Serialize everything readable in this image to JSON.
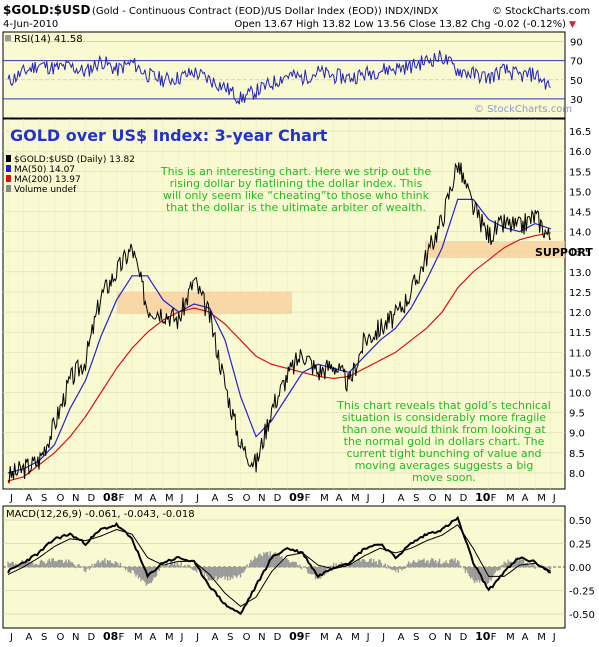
{
  "header": {
    "symbol": "$GOLD:$USD",
    "description": "(Gold - Continuous Contract (EOD)/US Dollar Index (EOD))  INDX/INDX",
    "brand": "© StockCharts.com",
    "date": "4-Jun-2010",
    "ohlc": "Open 13.67  High 13.82  Low 13.56  Close 13.82  Chg -0.02 (-0.12%)",
    "chg_marker": "▼"
  },
  "rsi_panel": {
    "legend": "RSI(14) 41.58",
    "ticks": [
      "90",
      "70",
      "50",
      "30"
    ],
    "watermark": "© StockCharts.com"
  },
  "main_panel": {
    "headline": "GOLD over US$ Index: 3-year Chart",
    "legend": [
      {
        "text": "$GOLD:$USD (Daily) 13.82",
        "color": "#000000"
      },
      {
        "text": "MA(50) 14.07",
        "color": "#2222cc"
      },
      {
        "text": "MA(200) 13.97",
        "color": "#dd1111"
      },
      {
        "text": "Volume undef",
        "color": "#888888"
      }
    ],
    "note_top": [
      "This is an interesting chart. Here we strip out the",
      "rising dollar by flatlining the dollar index. This",
      "will only seem like “cheating”to those who think",
      "that the dollar is the ultimate arbiter of wealth."
    ],
    "note_bottom": [
      "This chart reveals that gold’s technical",
      "situation is considerably more fragile",
      "than one would think from looking at",
      "the normal gold in dollars chart. The",
      "current tight bunching of value and",
      "moving averages suggests a big",
      "move soon."
    ],
    "support_label": "SUPPORT",
    "yticks": [
      "16.5",
      "16.0",
      "15.5",
      "15.0",
      "14.5",
      "14.0",
      "13.5",
      "13.0",
      "12.5",
      "12.0",
      "11.5",
      "11.0",
      "10.5",
      "10.0",
      "9.5",
      "9.0",
      "8.5",
      "8.0"
    ]
  },
  "macd_panel": {
    "legend": "MACD(12,26,9) -0.061, -0.043, -0.018",
    "ticks": [
      "0.50",
      "0.25",
      "0.00",
      "-0.25",
      "-0.50"
    ]
  },
  "x_axis": {
    "labels": [
      "J",
      "A",
      "S",
      "O",
      "N",
      "D",
      "08",
      "F",
      "M",
      "A",
      "M",
      "J",
      "J",
      "A",
      "S",
      "O",
      "N",
      "D",
      "09",
      "F",
      "M",
      "A",
      "M",
      "J",
      "J",
      "A",
      "S",
      "O",
      "N",
      "D",
      "10",
      "F",
      "M",
      "A",
      "M",
      "J"
    ]
  },
  "colors": {
    "panel_bg": "#fafad2",
    "rsi_line": "#2222bb",
    "ma50": "#2222cc",
    "ma200": "#dd1111",
    "note_text": "#22bb22",
    "headline": "#2233cc",
    "support_zone": "#f8cc99"
  },
  "chart_data": [
    {
      "type": "line",
      "title": "RSI(14) 41.58",
      "ylim": [
        10,
        100
      ],
      "ticks": [
        30,
        50,
        70,
        90
      ],
      "series": [
        {
          "name": "RSI(14)",
          "x_months": [
            0,
            1,
            2,
            3,
            4,
            5,
            6,
            7,
            8,
            9,
            10,
            11,
            12,
            13,
            14,
            15,
            16,
            17,
            18,
            19,
            20,
            21,
            22,
            23,
            24,
            25,
            26,
            27,
            28,
            29,
            30,
            31,
            32,
            33,
            34,
            35
          ],
          "values": [
            48,
            58,
            66,
            62,
            64,
            58,
            70,
            60,
            68,
            55,
            50,
            52,
            58,
            50,
            42,
            30,
            38,
            46,
            55,
            52,
            58,
            54,
            52,
            56,
            60,
            62,
            64,
            70,
            74,
            60,
            56,
            52,
            60,
            54,
            56,
            42
          ]
        }
      ]
    },
    {
      "type": "line",
      "title": "$GOLD:$USD (Daily) 13.82",
      "ylim": [
        7.6,
        16.8
      ],
      "ticks": [
        8.0,
        8.5,
        9.0,
        9.5,
        10.0,
        10.5,
        11.0,
        11.5,
        12.0,
        12.5,
        13.0,
        13.5,
        14.0,
        14.5,
        15.0,
        15.5,
        16.0,
        16.5
      ],
      "x_months": [
        0,
        1,
        2,
        3,
        4,
        5,
        6,
        7,
        8,
        9,
        10,
        11,
        12,
        13,
        14,
        15,
        16,
        17,
        18,
        19,
        20,
        21,
        22,
        23,
        24,
        25,
        26,
        27,
        28,
        29,
        30,
        31,
        32,
        33,
        34,
        35
      ],
      "series": [
        {
          "name": "$GOLD:$USD",
          "values": [
            7.9,
            8.1,
            8.3,
            9.2,
            10.3,
            10.8,
            12.4,
            13.0,
            13.6,
            12.1,
            12.0,
            11.8,
            12.8,
            11.9,
            10.2,
            8.7,
            8.2,
            9.6,
            10.4,
            11.0,
            10.5,
            10.7,
            10.2,
            11.3,
            11.6,
            11.9,
            12.5,
            13.4,
            14.3,
            15.7,
            14.6,
            13.9,
            14.2,
            14.1,
            14.4,
            13.82
          ]
        },
        {
          "name": "MA(50)",
          "values": [
            8.0,
            8.1,
            8.3,
            8.7,
            9.6,
            10.3,
            11.4,
            12.3,
            12.9,
            12.9,
            12.3,
            12.0,
            12.2,
            12.1,
            11.3,
            9.9,
            8.9,
            9.3,
            9.9,
            10.5,
            10.7,
            10.6,
            10.5,
            10.9,
            11.3,
            11.6,
            12.1,
            12.8,
            13.6,
            14.8,
            14.8,
            14.3,
            14.1,
            14.0,
            14.2,
            14.07
          ]
        },
        {
          "name": "MA(200)",
          "values": [
            7.8,
            7.9,
            8.2,
            8.5,
            8.9,
            9.4,
            10.0,
            10.6,
            11.1,
            11.5,
            11.8,
            12.0,
            12.1,
            12.0,
            11.7,
            11.3,
            10.9,
            10.7,
            10.6,
            10.5,
            10.4,
            10.35,
            10.4,
            10.6,
            10.8,
            11.0,
            11.3,
            11.6,
            12.0,
            12.6,
            13.0,
            13.3,
            13.6,
            13.8,
            13.9,
            13.97
          ]
        }
      ],
      "annotations": [
        "SUPPORT"
      ]
    },
    {
      "type": "line",
      "title": "MACD(12,26,9) -0.061, -0.043, -0.018",
      "ylim": [
        -0.65,
        0.65
      ],
      "ticks": [
        0.5,
        0.25,
        0.0,
        -0.25,
        -0.5
      ],
      "x_months": [
        0,
        1,
        2,
        3,
        4,
        5,
        6,
        7,
        8,
        9,
        10,
        11,
        12,
        13,
        14,
        15,
        16,
        17,
        18,
        19,
        20,
        21,
        22,
        23,
        24,
        25,
        26,
        27,
        28,
        29,
        30,
        31,
        32,
        33,
        34,
        35
      ],
      "series": [
        {
          "name": "MACD",
          "values": [
            -0.05,
            0.05,
            0.15,
            0.3,
            0.35,
            0.25,
            0.4,
            0.45,
            0.3,
            -0.1,
            0.05,
            0.1,
            0.05,
            -0.2,
            -0.4,
            -0.5,
            -0.2,
            0.1,
            0.2,
            0.15,
            -0.1,
            0.0,
            0.05,
            0.2,
            0.25,
            0.1,
            0.25,
            0.35,
            0.4,
            0.52,
            0.05,
            -0.25,
            -0.05,
            0.1,
            0.05,
            -0.061
          ]
        },
        {
          "name": "Signal",
          "values": [
            -0.08,
            0.0,
            0.1,
            0.22,
            0.3,
            0.28,
            0.33,
            0.4,
            0.35,
            0.1,
            0.02,
            0.06,
            0.06,
            -0.08,
            -0.28,
            -0.42,
            -0.32,
            -0.05,
            0.12,
            0.15,
            0.02,
            -0.02,
            0.02,
            0.12,
            0.2,
            0.15,
            0.2,
            0.28,
            0.34,
            0.45,
            0.2,
            -0.1,
            -0.1,
            0.02,
            0.04,
            -0.043
          ]
        },
        {
          "name": "Histogram",
          "values": [
            0.03,
            0.05,
            0.05,
            0.08,
            0.05,
            -0.03,
            0.07,
            0.05,
            -0.05,
            -0.2,
            0.03,
            0.04,
            -0.01,
            -0.12,
            -0.12,
            -0.08,
            0.12,
            0.15,
            0.08,
            0.0,
            -0.12,
            0.02,
            0.03,
            0.08,
            0.05,
            -0.05,
            0.05,
            0.07,
            0.06,
            0.07,
            -0.15,
            -0.15,
            0.05,
            0.08,
            0.01,
            -0.018
          ]
        }
      ]
    }
  ]
}
